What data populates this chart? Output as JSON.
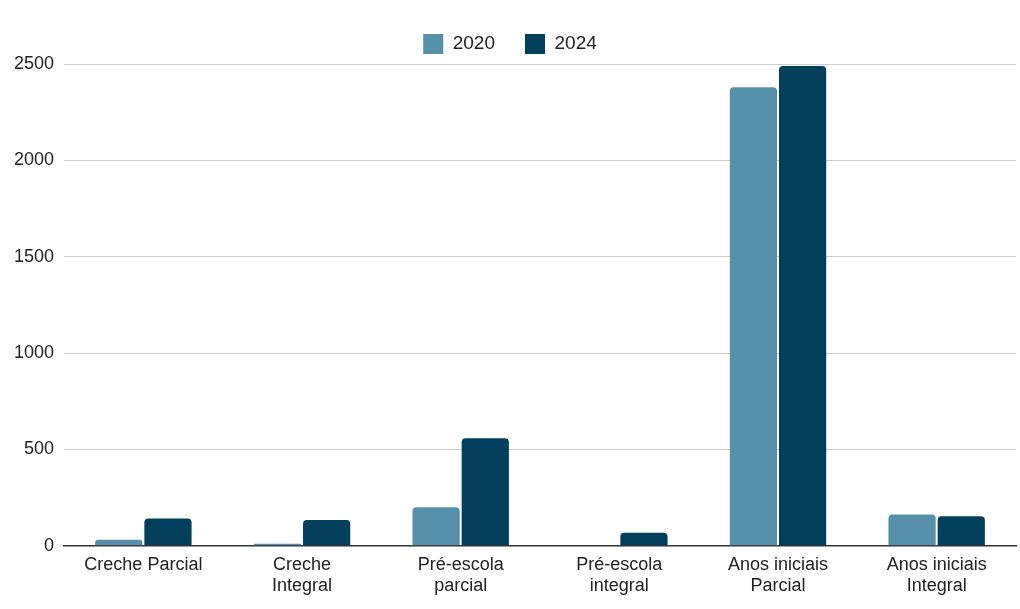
{
  "chart_data": {
    "type": "bar",
    "categories": [
      "Creche Parcial",
      "Creche Integral",
      "Pré-escola parcial",
      "Pré-escola integral",
      "Anos iniciais Parcial",
      "Anos iniciais Integral"
    ],
    "series": [
      {
        "name": "2020",
        "color": "#5790ab",
        "values": [
          32,
          10,
          200,
          0,
          2380,
          163
        ]
      },
      {
        "name": "2024",
        "color": "#023f5d",
        "values": [
          142,
          134,
          558,
          68,
          2490,
          153
        ]
      }
    ],
    "ylim": [
      0,
      2500
    ],
    "yticks": [
      0,
      500,
      1000,
      1500,
      2000,
      2500
    ],
    "grid": "y",
    "legend": "top"
  }
}
